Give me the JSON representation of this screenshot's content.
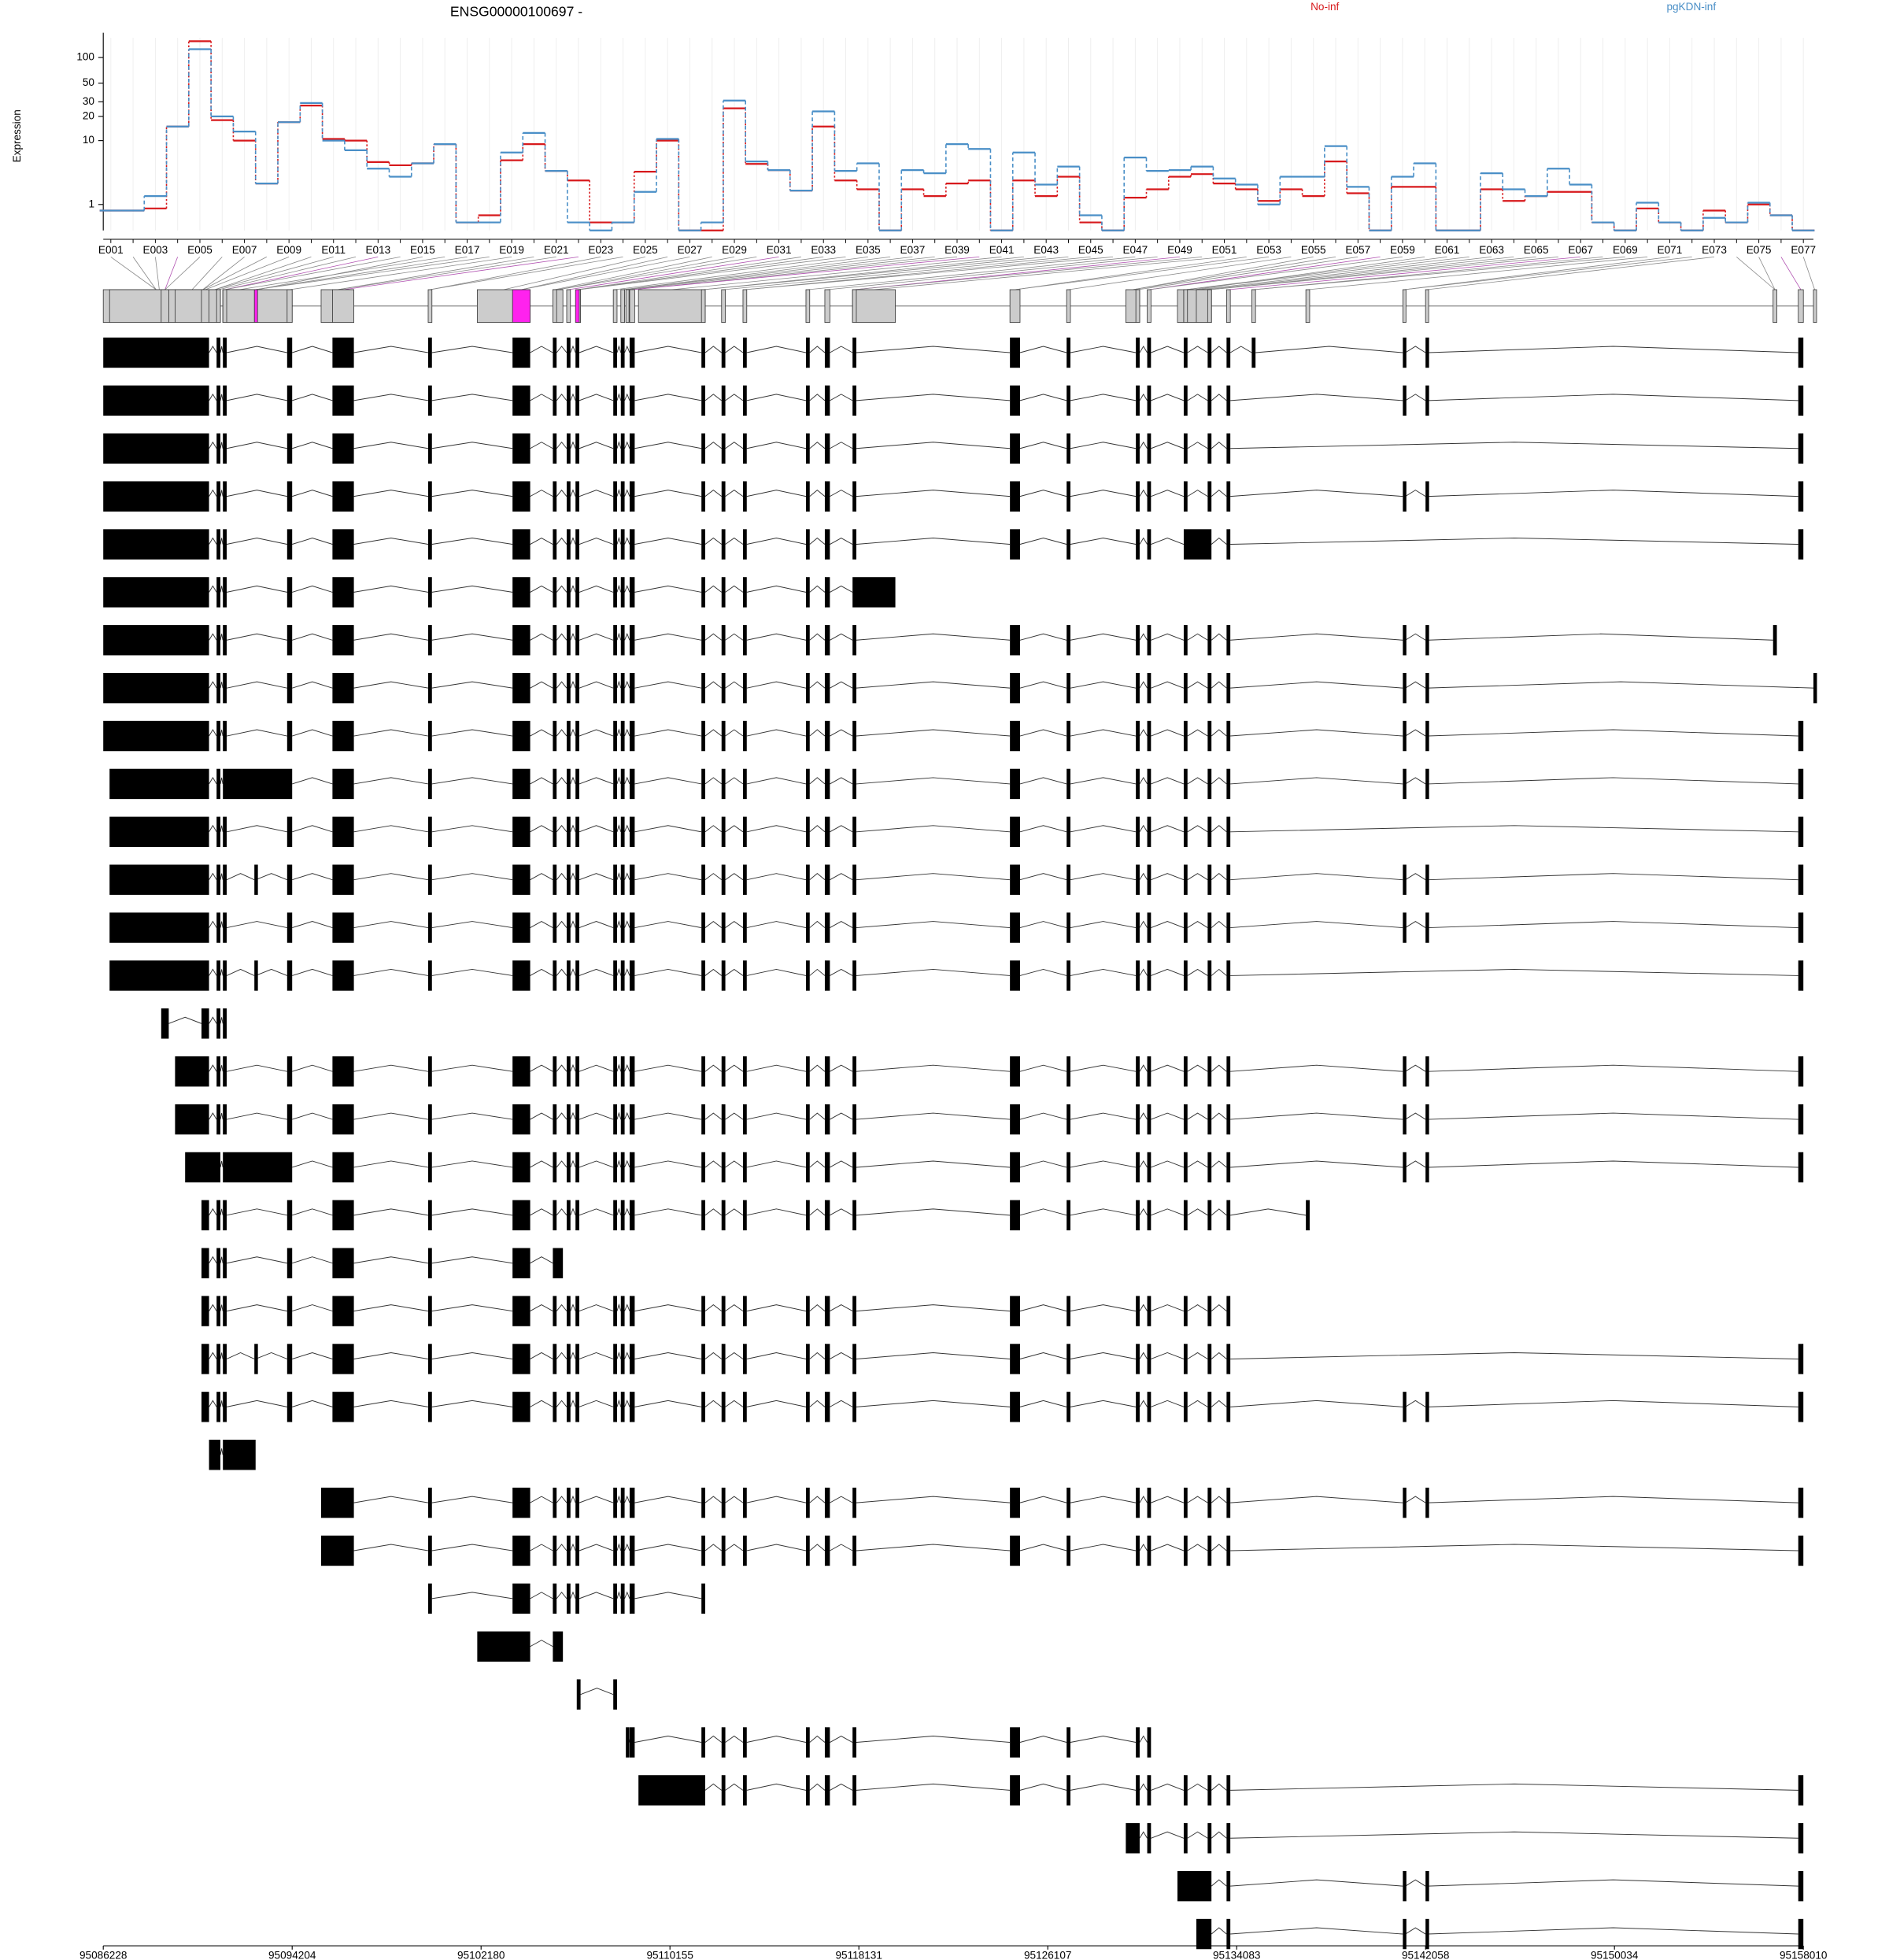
{
  "chart_data": {
    "type": "line",
    "title": "ENSG00000100697 -",
    "y_label": "Expression",
    "categories": [
      "E001",
      null,
      "E003",
      null,
      "E005",
      null,
      "E007",
      null,
      "E009",
      null,
      "E011",
      null,
      "E013",
      null,
      "E015",
      null,
      "E017",
      null,
      "E019",
      null,
      "E021",
      null,
      "E023",
      null,
      "E025",
      null,
      "E027",
      null,
      "E029",
      null,
      "E031",
      null,
      "E033",
      null,
      "E035",
      null,
      "E037",
      null,
      "E039",
      null,
      "E041",
      null,
      "E043",
      null,
      "E045",
      null,
      "E047",
      null,
      "E049",
      null,
      "E051",
      null,
      "E053",
      null,
      "E055",
      null,
      "E057",
      null,
      "E059",
      null,
      "E061",
      null,
      "E063",
      null,
      "E065",
      null,
      "E067",
      null,
      "E069",
      null,
      "E071",
      null,
      "E073",
      null,
      "E075",
      null,
      "E077"
    ],
    "series": [
      {
        "name": "No-inf",
        "color": "#d7191c",
        "values": [
          0.7,
          0.7,
          0.8,
          15,
          155,
          18,
          10,
          2.5,
          17,
          27,
          10.5,
          10,
          5.2,
          4.7,
          5,
          9,
          0.24,
          0.5,
          5.5,
          9,
          3.9,
          2.8,
          0.24,
          0.24,
          3.8,
          10,
          0,
          0,
          25,
          4.9,
          4,
          1.9,
          15,
          2.8,
          2,
          0,
          2,
          1.5,
          2.5,
          2.8,
          0,
          2.8,
          1.5,
          3.2,
          0.24,
          0,
          1.4,
          2,
          3.2,
          3.5,
          2.5,
          2,
          1.2,
          2,
          1.5,
          5.3,
          1.7,
          0,
          2.2,
          2.2,
          0,
          0,
          2,
          1.2,
          1.5,
          1.8,
          1.8,
          0.24,
          0,
          0.8,
          0.24,
          0,
          0.7,
          0.24,
          1,
          0.5,
          0
        ]
      },
      {
        "name": "pgKDN-inf",
        "color": "#4a8fc7",
        "values": [
          0.7,
          0.7,
          1.5,
          15,
          125,
          20,
          13,
          2.5,
          17,
          29,
          10,
          7.5,
          4.2,
          3.2,
          5,
          9,
          0.24,
          0.24,
          7,
          12.5,
          3.9,
          0.24,
          0,
          0.24,
          1.8,
          10.5,
          0,
          0.24,
          31,
          5.3,
          4,
          1.9,
          23,
          3.9,
          5,
          0,
          4,
          3.6,
          9,
          7.8,
          0,
          7,
          2.4,
          4.5,
          0.5,
          0,
          6,
          3.9,
          4,
          4.5,
          3,
          2.4,
          1,
          3.2,
          3.2,
          8.5,
          2.2,
          0,
          3.2,
          5,
          0,
          0,
          3.6,
          2,
          1.5,
          4.2,
          2.4,
          0.24,
          0,
          1.1,
          0.24,
          0,
          0.4,
          0.24,
          1.1,
          0.5,
          0
        ]
      }
    ],
    "ylim": [
      0,
      170
    ],
    "yticks": [
      1,
      10,
      20,
      30,
      50,
      100
    ],
    "log_scale": true,
    "grid": true
  },
  "gene_model": {
    "xlim": [
      95086228,
      95158010
    ],
    "xticks": [
      95086228,
      95094204,
      95102180,
      95110155,
      95118131,
      95126107,
      95134083,
      95142058,
      95150034,
      95158010
    ],
    "exon_color": "#cccccc",
    "highlight_color": "#ff22ee",
    "highlighted_blocks": [
      14,
      18,
      10
    ],
    "exon_blocks": [
      [
        95086228,
        95090694
      ],
      [
        95086494,
        95090694
      ],
      [
        95088674,
        95088993
      ],
      [
        95089259,
        95090694
      ],
      [
        95089684,
        95091173
      ],
      [
        95090375,
        95090694
      ],
      [
        95091013,
        95091173
      ],
      [
        95091279,
        95091439
      ],
      [
        95091279,
        95094204
      ],
      [
        95093991,
        95094204
      ],
      [
        95092608,
        95092660
      ],
      [
        95095905,
        95096809
      ],
      [
        95095426,
        95096809
      ],
      [
        95099946,
        95100105
      ],
      [
        95103508,
        95104253
      ],
      [
        95102019,
        95104253
      ],
      [
        95105210,
        95105369
      ],
      [
        95105795,
        95105954
      ],
      [
        95106167,
        95106326
      ],
      [
        95105210,
        95105635
      ],
      [
        95107762,
        95107921
      ],
      [
        95108081,
        95108240
      ],
      [
        95108453,
        95108666
      ],
      [
        95111484,
        95111643
      ],
      [
        95112334,
        95112494
      ],
      [
        95113238,
        95113398
      ],
      [
        95115897,
        95116056
      ],
      [
        95116694,
        95116907
      ],
      [
        95117864,
        95118024
      ],
      [
        95117864,
        95119672
      ],
      [
        95124510,
        95124936
      ],
      [
        95126903,
        95127063
      ],
      [
        95129827,
        95129987
      ],
      [
        95130306,
        95130465
      ],
      [
        95131848,
        95132007
      ],
      [
        95132858,
        95133018
      ],
      [
        95133656,
        95133815
      ],
      [
        95131848,
        95133018
      ],
      [
        95134719,
        95134879
      ],
      [
        95137005,
        95137165
      ],
      [
        95141099,
        95141206
      ],
      [
        95142057,
        95142163
      ],
      [
        95157795,
        95158010
      ],
      [
        95156731,
        95156891
      ],
      [
        95158435,
        95158541
      ],
      [
        95108825,
        95111643
      ],
      [
        95108293,
        95108350
      ],
      [
        95129402,
        95129987
      ],
      [
        95131582,
        95133018
      ],
      [
        95132380,
        95133018
      ],
      [
        95106220,
        95106380
      ],
      [
        95090694,
        95091173
      ],
      [
        95091279,
        95092660
      ]
    ],
    "transcripts": [
      [
        0,
        6,
        7,
        9,
        11,
        13,
        14,
        16,
        17,
        18,
        20,
        21,
        22,
        23,
        24,
        25,
        26,
        27,
        28,
        30,
        31,
        32,
        33,
        34,
        35,
        36,
        38,
        40,
        41,
        42
      ],
      [
        0,
        6,
        7,
        9,
        11,
        13,
        14,
        16,
        17,
        18,
        20,
        21,
        22,
        23,
        24,
        25,
        26,
        27,
        28,
        30,
        31,
        32,
        33,
        34,
        35,
        36,
        40,
        41,
        42
      ],
      [
        0,
        6,
        7,
        9,
        11,
        13,
        14,
        16,
        17,
        18,
        20,
        21,
        22,
        23,
        24,
        25,
        26,
        27,
        28,
        30,
        31,
        32,
        33,
        34,
        35,
        36,
        42
      ],
      [
        0,
        6,
        7,
        9,
        11,
        13,
        14,
        16,
        17,
        18,
        20,
        21,
        22,
        23,
        24,
        25,
        26,
        27,
        28,
        30,
        31,
        32,
        33,
        34,
        35,
        36,
        40,
        41,
        42
      ],
      [
        0,
        6,
        7,
        9,
        11,
        13,
        14,
        16,
        17,
        18,
        20,
        21,
        22,
        23,
        24,
        25,
        26,
        27,
        28,
        30,
        31,
        32,
        33,
        37,
        36,
        42
      ],
      [
        0,
        6,
        7,
        9,
        11,
        13,
        14,
        16,
        17,
        18,
        20,
        21,
        22,
        23,
        24,
        25,
        26,
        27,
        29
      ],
      [
        0,
        6,
        7,
        9,
        11,
        13,
        14,
        16,
        17,
        18,
        20,
        21,
        22,
        23,
        24,
        25,
        26,
        27,
        28,
        30,
        31,
        32,
        33,
        34,
        35,
        36,
        40,
        41,
        43
      ],
      [
        0,
        6,
        7,
        9,
        11,
        13,
        14,
        16,
        17,
        18,
        20,
        21,
        22,
        23,
        24,
        25,
        26,
        27,
        28,
        30,
        31,
        32,
        33,
        34,
        35,
        36,
        40,
        41,
        44
      ],
      [
        0,
        6,
        7,
        9,
        11,
        13,
        14,
        16,
        17,
        18,
        20,
        21,
        22,
        23,
        24,
        25,
        26,
        27,
        28,
        30,
        31,
        32,
        33,
        34,
        35,
        36,
        40,
        41,
        42
      ],
      [
        1,
        6,
        8,
        11,
        13,
        14,
        16,
        17,
        18,
        20,
        21,
        22,
        23,
        24,
        25,
        26,
        27,
        28,
        30,
        31,
        32,
        33,
        34,
        35,
        36,
        40,
        41,
        42
      ],
      [
        1,
        6,
        7,
        9,
        11,
        13,
        14,
        16,
        17,
        18,
        20,
        21,
        22,
        23,
        24,
        25,
        26,
        27,
        28,
        30,
        31,
        32,
        33,
        34,
        35,
        36,
        42
      ],
      [
        1,
        6,
        7,
        10,
        9,
        11,
        13,
        14,
        16,
        17,
        18,
        20,
        21,
        22,
        23,
        24,
        25,
        26,
        27,
        28,
        30,
        31,
        32,
        33,
        34,
        35,
        36,
        40,
        41,
        42
      ],
      [
        1,
        6,
        7,
        9,
        11,
        13,
        14,
        16,
        17,
        18,
        20,
        21,
        22,
        23,
        24,
        25,
        26,
        27,
        28,
        30,
        31,
        32,
        33,
        34,
        35,
        36,
        40,
        41,
        42
      ],
      [
        1,
        6,
        7,
        10,
        9,
        11,
        13,
        14,
        16,
        17,
        18,
        20,
        21,
        22,
        23,
        24,
        25,
        26,
        27,
        28,
        30,
        31,
        32,
        33,
        34,
        35,
        36,
        42
      ],
      [
        2,
        5,
        6,
        7
      ],
      [
        3,
        6,
        7,
        9,
        11,
        13,
        14,
        16,
        17,
        18,
        20,
        21,
        22,
        23,
        24,
        25,
        26,
        27,
        28,
        30,
        31,
        32,
        33,
        34,
        35,
        36,
        40,
        41,
        42
      ],
      [
        3,
        6,
        7,
        9,
        11,
        13,
        14,
        16,
        17,
        18,
        20,
        21,
        22,
        23,
        24,
        25,
        26,
        27,
        28,
        30,
        31,
        32,
        33,
        34,
        35,
        36,
        40,
        41,
        42
      ],
      [
        4,
        8,
        11,
        13,
        14,
        16,
        17,
        18,
        20,
        21,
        22,
        23,
        24,
        25,
        26,
        27,
        28,
        30,
        31,
        32,
        33,
        34,
        35,
        36,
        40,
        41,
        42
      ],
      [
        5,
        6,
        7,
        9,
        11,
        13,
        14,
        16,
        17,
        18,
        20,
        21,
        22,
        23,
        24,
        25,
        26,
        27,
        28,
        30,
        31,
        32,
        33,
        34,
        35,
        36,
        39
      ],
      [
        5,
        6,
        7,
        9,
        11,
        13,
        14,
        19
      ],
      [
        5,
        6,
        7,
        9,
        11,
        13,
        14,
        16,
        17,
        18,
        20,
        21,
        22,
        23,
        24,
        25,
        26,
        27,
        28,
        30,
        31,
        32,
        33,
        34,
        35,
        36
      ],
      [
        5,
        6,
        7,
        10,
        9,
        11,
        13,
        14,
        16,
        17,
        18,
        20,
        21,
        22,
        23,
        24,
        25,
        26,
        27,
        28,
        30,
        31,
        32,
        33,
        34,
        35,
        36,
        42
      ],
      [
        5,
        6,
        7,
        9,
        11,
        13,
        14,
        16,
        17,
        18,
        20,
        21,
        22,
        23,
        24,
        25,
        26,
        27,
        28,
        30,
        31,
        32,
        33,
        34,
        35,
        36,
        40,
        41,
        42
      ],
      [
        51,
        52
      ],
      [
        12,
        13,
        14,
        16,
        17,
        18,
        20,
        21,
        22,
        23,
        24,
        25,
        26,
        27,
        28,
        30,
        31,
        32,
        33,
        34,
        35,
        36,
        40,
        41,
        42
      ],
      [
        12,
        13,
        14,
        16,
        17,
        18,
        20,
        21,
        22,
        23,
        24,
        25,
        26,
        27,
        28,
        30,
        31,
        32,
        33,
        34,
        35,
        36,
        42
      ],
      [
        13,
        14,
        16,
        17,
        18,
        20,
        21,
        22,
        23
      ],
      [
        15,
        19
      ],
      [
        50,
        20
      ],
      [
        46,
        22,
        23,
        24,
        25,
        26,
        27,
        28,
        30,
        31,
        32,
        33
      ],
      [
        45,
        24,
        25,
        26,
        27,
        28,
        30,
        31,
        32,
        33,
        34,
        35,
        36,
        42
      ],
      [
        47,
        33,
        34,
        35,
        36,
        42
      ],
      [
        48,
        36,
        40,
        41,
        42
      ],
      [
        49,
        36,
        40,
        41,
        42
      ]
    ]
  }
}
